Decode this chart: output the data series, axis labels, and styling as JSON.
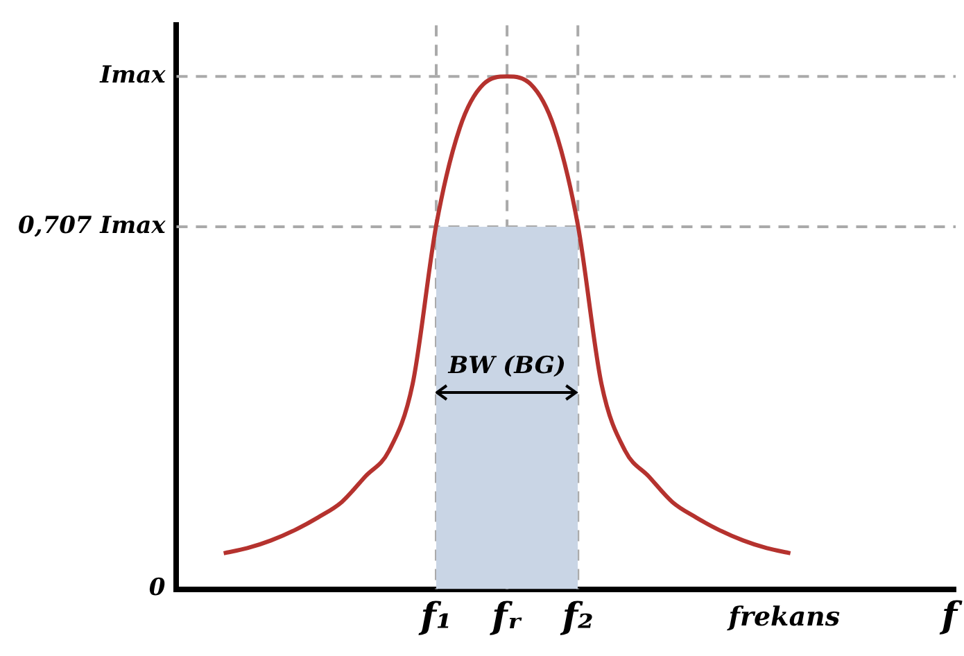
{
  "chart_data": {
    "type": "line",
    "xlabel": "frekans",
    "annotations": [
      {
        "text": "BW (BG)",
        "x": "fᵣ",
        "y": 0.4
      },
      "f"
    ],
    "categories": [
      null,
      null,
      null,
      null,
      null,
      null,
      null,
      null,
      null,
      null,
      null,
      "f₁",
      null,
      null,
      "fᵣ",
      null,
      null,
      "f₂",
      null,
      null,
      null,
      null,
      null,
      null,
      null,
      null,
      null,
      null,
      null,
      null,
      null,
      null,
      null,
      null
    ],
    "series": [
      {
        "type": "area",
        "color": "#c9d5e5",
        "values": [
          null,
          null,
          null,
          null,
          null,
          null,
          null,
          null,
          null,
          null,
          null,
          0.707,
          0.707,
          0.707,
          0.707,
          0.707,
          0.707,
          0.707,
          null,
          null,
          null,
          null,
          null,
          null,
          null,
          null,
          null,
          null,
          null,
          null,
          null,
          null,
          null,
          null
        ]
      },
      {
        "color": "#b5322e",
        "values": [
          null,
          null,
          0.07,
          0.08,
          0.095,
          0.115,
          0.14,
          0.17,
          0.22,
          0.27,
          0.4,
          0.71,
          0.9,
          0.985,
          1,
          0.985,
          0.9,
          0.71,
          0.4,
          0.27,
          0.22,
          0.17,
          0.14,
          0.115,
          0.095,
          0.08,
          0.07,
          null,
          null,
          null,
          null,
          null,
          null,
          null
        ]
      }
    ],
    "ylim": [
      0,
      1.1
    ],
    "yticks": [
      {
        "value": 0,
        "label": "0"
      },
      {
        "value": 0.707,
        "label": "0,707 Imax"
      },
      {
        "value": 1,
        "label": "Imax"
      }
    ],
    "ref_lines": [
      {
        "axis": "y",
        "value": 1,
        "color": "#aaaaaa",
        "line_style": "dashed"
      },
      {
        "axis": "y",
        "value": 0.707,
        "color": "#aaaaaa",
        "line_style": "dashed"
      },
      {
        "axis": "x",
        "value": "f₁",
        "color": "#aaaaaa",
        "line_style": "dashed"
      },
      {
        "axis": "x",
        "value": "fᵣ",
        "color": "#aaaaaa",
        "line_style": "dashed"
      },
      {
        "axis": "x",
        "value": "f₂",
        "color": "#aaaaaa",
        "line_style": "dashed"
      }
    ],
    "grid": false,
    "legend": false,
    "marker": "none"
  }
}
